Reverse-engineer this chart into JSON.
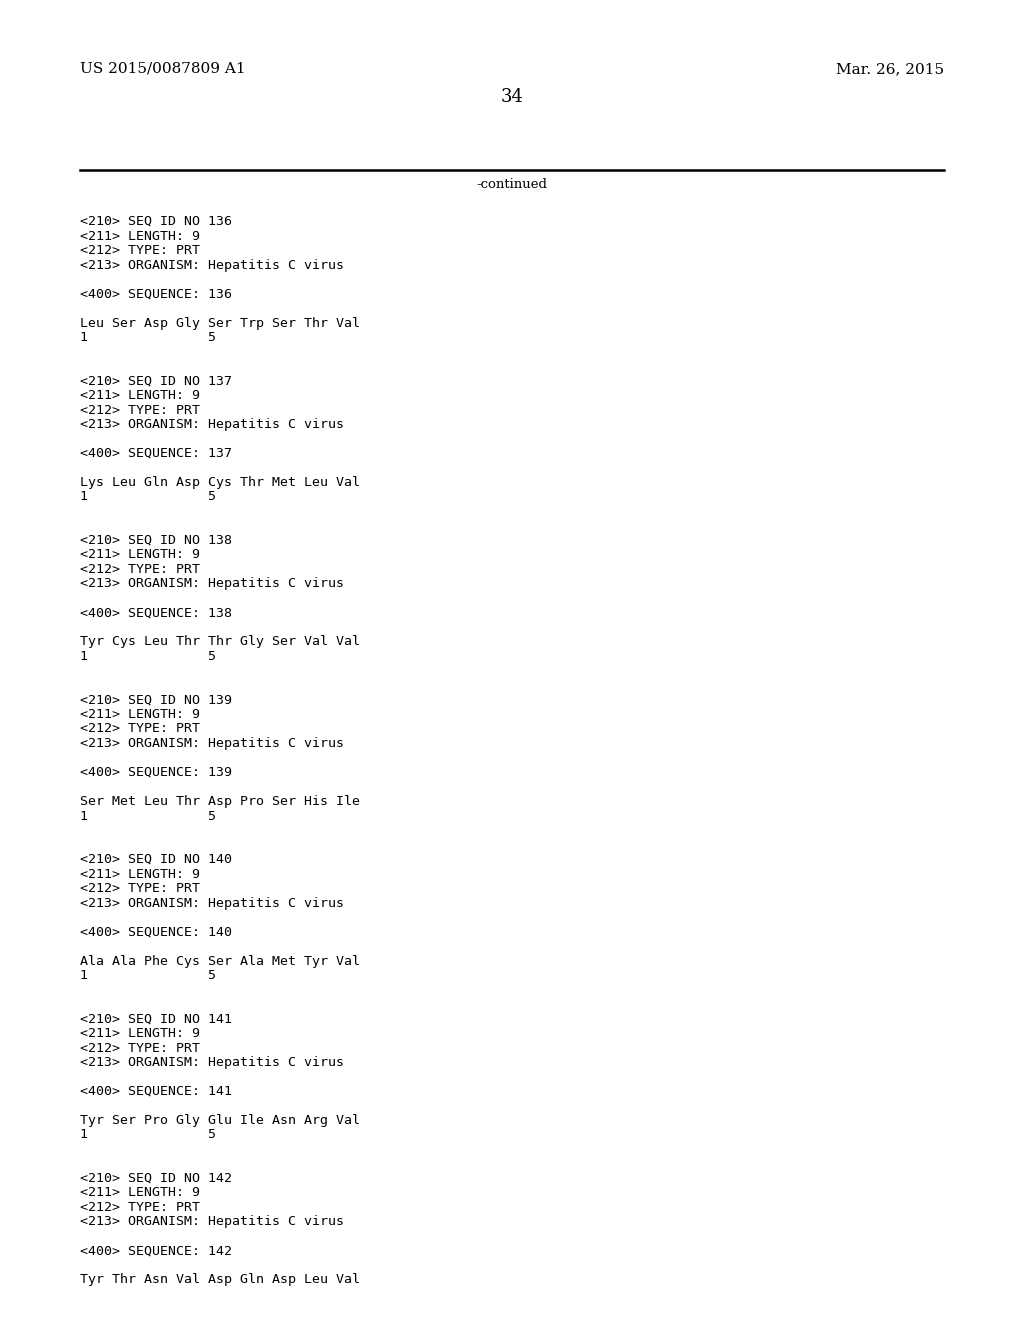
{
  "background_color": "#ffffff",
  "header_left": "US 2015/0087809 A1",
  "header_right": "Mar. 26, 2015",
  "page_number": "34",
  "continued_text": "-continued",
  "header_font_size": 11,
  "page_num_font_size": 13,
  "body_font_size": 9.5,
  "content_lines": [
    "<210> SEQ ID NO 136",
    "<211> LENGTH: 9",
    "<212> TYPE: PRT",
    "<213> ORGANISM: Hepatitis C virus",
    "",
    "<400> SEQUENCE: 136",
    "",
    "Leu Ser Asp Gly Ser Trp Ser Thr Val",
    "1               5",
    "",
    "",
    "<210> SEQ ID NO 137",
    "<211> LENGTH: 9",
    "<212> TYPE: PRT",
    "<213> ORGANISM: Hepatitis C virus",
    "",
    "<400> SEQUENCE: 137",
    "",
    "Lys Leu Gln Asp Cys Thr Met Leu Val",
    "1               5",
    "",
    "",
    "<210> SEQ ID NO 138",
    "<211> LENGTH: 9",
    "<212> TYPE: PRT",
    "<213> ORGANISM: Hepatitis C virus",
    "",
    "<400> SEQUENCE: 138",
    "",
    "Tyr Cys Leu Thr Thr Gly Ser Val Val",
    "1               5",
    "",
    "",
    "<210> SEQ ID NO 139",
    "<211> LENGTH: 9",
    "<212> TYPE: PRT",
    "<213> ORGANISM: Hepatitis C virus",
    "",
    "<400> SEQUENCE: 139",
    "",
    "Ser Met Leu Thr Asp Pro Ser His Ile",
    "1               5",
    "",
    "",
    "<210> SEQ ID NO 140",
    "<211> LENGTH: 9",
    "<212> TYPE: PRT",
    "<213> ORGANISM: Hepatitis C virus",
    "",
    "<400> SEQUENCE: 140",
    "",
    "Ala Ala Phe Cys Ser Ala Met Tyr Val",
    "1               5",
    "",
    "",
    "<210> SEQ ID NO 141",
    "<211> LENGTH: 9",
    "<212> TYPE: PRT",
    "<213> ORGANISM: Hepatitis C virus",
    "",
    "<400> SEQUENCE: 141",
    "",
    "Tyr Ser Pro Gly Glu Ile Asn Arg Val",
    "1               5",
    "",
    "",
    "<210> SEQ ID NO 142",
    "<211> LENGTH: 9",
    "<212> TYPE: PRT",
    "<213> ORGANISM: Hepatitis C virus",
    "",
    "<400> SEQUENCE: 142",
    "",
    "Tyr Thr Asn Val Asp Gln Asp Leu Val"
  ]
}
